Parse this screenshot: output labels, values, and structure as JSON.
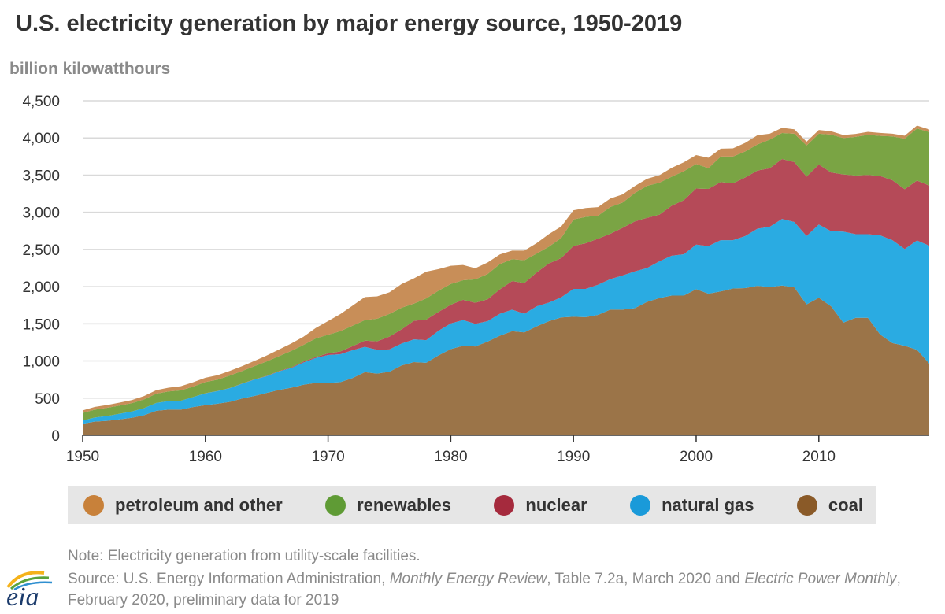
{
  "chart_data": {
    "type": "area",
    "stacked": true,
    "title": "U.S. electricity generation by major energy source, 1950-2019",
    "ylabel": "billion kilowatthours",
    "xlim": [
      1950,
      2019
    ],
    "ylim": [
      0,
      4500
    ],
    "x_ticks": [
      1950,
      1960,
      1970,
      1980,
      1990,
      2000,
      2010
    ],
    "y_ticks": [
      0,
      500,
      1000,
      1500,
      2000,
      2500,
      3000,
      3500,
      4000,
      4500
    ],
    "y_tick_labels": [
      "0",
      "500",
      "1,000",
      "1,500",
      "2,000",
      "2,500",
      "3,000",
      "3,500",
      "4,000",
      "4,500"
    ],
    "grid": true,
    "legend_position": "bottom",
    "x": [
      1950,
      1951,
      1952,
      1953,
      1954,
      1955,
      1956,
      1957,
      1958,
      1959,
      1960,
      1961,
      1962,
      1963,
      1964,
      1965,
      1966,
      1967,
      1968,
      1969,
      1970,
      1971,
      1972,
      1973,
      1974,
      1975,
      1976,
      1977,
      1978,
      1979,
      1980,
      1981,
      1982,
      1983,
      1984,
      1985,
      1986,
      1987,
      1988,
      1989,
      1990,
      1991,
      1992,
      1993,
      1994,
      1995,
      1996,
      1997,
      1998,
      1999,
      2000,
      2001,
      2002,
      2003,
      2004,
      2005,
      2006,
      2007,
      2008,
      2009,
      2010,
      2011,
      2012,
      2013,
      2014,
      2015,
      2016,
      2017,
      2018,
      2019
    ],
    "series": [
      {
        "name": "coal",
        "color": "#9b7448",
        "values": [
          155,
          185,
          195,
          215,
          235,
          270,
          330,
          345,
          345,
          380,
          405,
          425,
          450,
          495,
          530,
          570,
          610,
          640,
          680,
          705,
          705,
          715,
          770,
          850,
          830,
          855,
          940,
          985,
          975,
          1075,
          1160,
          1205,
          1195,
          1260,
          1340,
          1400,
          1385,
          1465,
          1535,
          1585,
          1595,
          1590,
          1620,
          1690,
          1690,
          1710,
          1795,
          1845,
          1880,
          1880,
          1965,
          1905,
          1935,
          1975,
          1980,
          2010,
          1995,
          2015,
          1990,
          1760,
          1850,
          1735,
          1515,
          1580,
          1580,
          1355,
          1240,
          1205,
          1150,
          965
        ]
      },
      {
        "name": "natural gas",
        "color": "#2aabe2",
        "values": [
          45,
          55,
          65,
          75,
          85,
          95,
          105,
          115,
          120,
          135,
          160,
          170,
          185,
          200,
          220,
          225,
          250,
          265,
          300,
          335,
          375,
          375,
          375,
          340,
          320,
          300,
          295,
          305,
          305,
          330,
          345,
          345,
          305,
          275,
          295,
          290,
          250,
          270,
          250,
          270,
          375,
          380,
          405,
          410,
          460,
          495,
          455,
          495,
          535,
          555,
          600,
          640,
          690,
          650,
          700,
          770,
          810,
          895,
          880,
          920,
          985,
          1010,
          1225,
          1125,
          1125,
          1335,
          1385,
          1300,
          1470,
          1585
        ]
      },
      {
        "name": "nuclear",
        "color": "#b54a58",
        "values": [
          0,
          0,
          0,
          0,
          0,
          0,
          0,
          0,
          0,
          0,
          1,
          2,
          2,
          3,
          3,
          4,
          6,
          8,
          13,
          14,
          22,
          38,
          54,
          83,
          114,
          173,
          191,
          251,
          276,
          255,
          251,
          273,
          283,
          294,
          328,
          384,
          414,
          455,
          527,
          529,
          577,
          613,
          619,
          610,
          640,
          673,
          675,
          628,
          673,
          728,
          754,
          769,
          780,
          764,
          788,
          782,
          787,
          806,
          806,
          799,
          807,
          790,
          769,
          789,
          797,
          797,
          806,
          805,
          807,
          809
        ]
      },
      {
        "name": "renewables",
        "color": "#7aa444",
        "values": [
          100,
          105,
          110,
          110,
          112,
          118,
          125,
          130,
          140,
          140,
          150,
          152,
          168,
          168,
          178,
          195,
          198,
          222,
          223,
          250,
          250,
          272,
          275,
          277,
          305,
          305,
          290,
          230,
          285,
          285,
          280,
          263,
          315,
          340,
          340,
          295,
          305,
          255,
          225,
          270,
          355,
          355,
          310,
          360,
          340,
          380,
          430,
          430,
          390,
          390,
          330,
          280,
          345,
          360,
          350,
          350,
          385,
          350,
          380,
          420,
          415,
          510,
          490,
          520,
          540,
          540,
          590,
          680,
          700,
          720
        ]
      },
      {
        "name": "petroleum and other",
        "color": "#c88e58",
        "values": [
          35,
          37,
          38,
          40,
          42,
          45,
          47,
          50,
          55,
          58,
          58,
          60,
          62,
          65,
          70,
          80,
          90,
          100,
          110,
          140,
          185,
          230,
          270,
          310,
          300,
          290,
          320,
          340,
          360,
          290,
          245,
          205,
          150,
          155,
          130,
          115,
          130,
          140,
          170,
          155,
          125,
          120,
          115,
          115,
          110,
          95,
          95,
          100,
          120,
          120,
          120,
          140,
          105,
          110,
          115,
          125,
          80,
          70,
          60,
          50,
          50,
          45,
          40,
          40,
          40,
          40,
          35,
          40,
          40,
          35
        ]
      }
    ]
  },
  "legend_items": [
    {
      "label": "petroleum and other",
      "color": "#c8813a"
    },
    {
      "label": "renewables",
      "color": "#5f9b35"
    },
    {
      "label": "nuclear",
      "color": "#a52a3d"
    },
    {
      "label": "natural gas",
      "color": "#1a9ad9"
    },
    {
      "label": "coal",
      "color": "#8a5a28"
    }
  ],
  "footer": {
    "note": "Note: Electricity generation from utility-scale facilities.",
    "source_prefix": "Source: U.S. Energy Information Administration, ",
    "source_mer": "Monthly Energy Review",
    "source_mid": ", Table 7.2a, March 2020 and ",
    "source_epm": "Electric Power Monthly",
    "source_suffix": ", February 2020, preliminary data for 2019"
  },
  "logo": {
    "text": "eia"
  }
}
